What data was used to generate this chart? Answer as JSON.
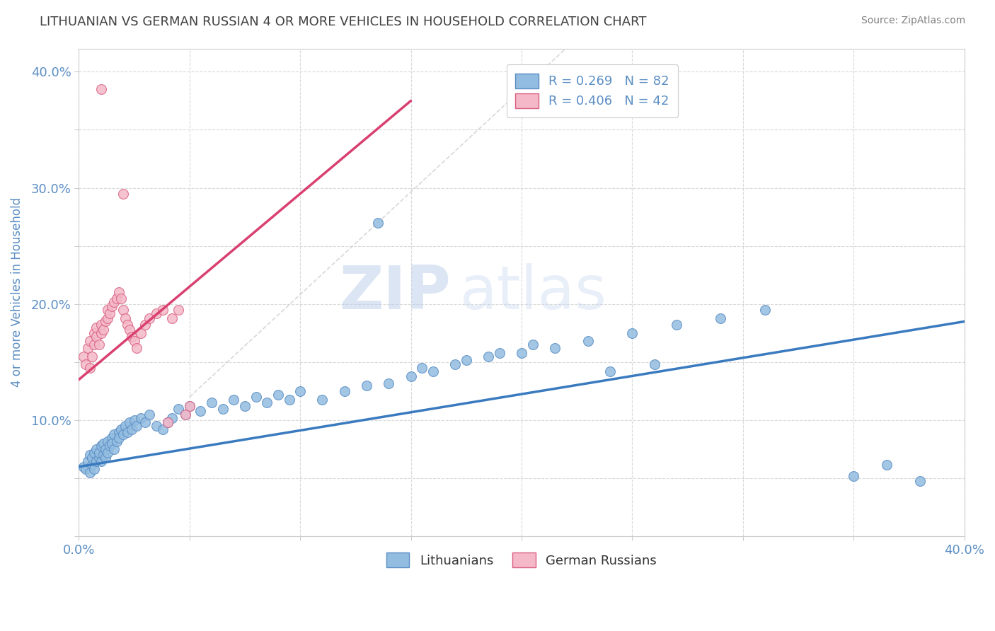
{
  "title": "LITHUANIAN VS GERMAN RUSSIAN 4 OR MORE VEHICLES IN HOUSEHOLD CORRELATION CHART",
  "source": "Source: ZipAtlas.com",
  "ylabel": "4 or more Vehicles in Household",
  "xlim": [
    0.0,
    0.4
  ],
  "ylim": [
    0.0,
    0.42
  ],
  "xtick_pos": [
    0.0,
    0.05,
    0.1,
    0.15,
    0.2,
    0.25,
    0.3,
    0.35,
    0.4
  ],
  "ytick_pos": [
    0.0,
    0.05,
    0.1,
    0.15,
    0.2,
    0.25,
    0.3,
    0.35,
    0.4
  ],
  "xtick_labels": [
    "0.0%",
    "",
    "",
    "",
    "",
    "",
    "",
    "",
    "40.0%"
  ],
  "ytick_labels": [
    "",
    "",
    "10.0%",
    "",
    "20.0%",
    "",
    "30.0%",
    "",
    "40.0%"
  ],
  "series": [
    {
      "name": "Lithuanians",
      "R": 0.269,
      "N": 82,
      "color": "#92bce0",
      "edge_color": "#5b8ec4",
      "trend_color": "#3a7abf",
      "trend_style": "solid"
    },
    {
      "name": "German Russians",
      "R": 0.406,
      "N": 42,
      "color": "#f4b8c8",
      "edge_color": "#d96080",
      "trend_color": "#d94070",
      "trend_style": "solid"
    }
  ],
  "lit_x": [
    0.002,
    0.003,
    0.004,
    0.005,
    0.005,
    0.006,
    0.006,
    0.007,
    0.007,
    0.008,
    0.008,
    0.009,
    0.009,
    0.01,
    0.01,
    0.011,
    0.011,
    0.012,
    0.012,
    0.013,
    0.013,
    0.014,
    0.015,
    0.015,
    0.016,
    0.016,
    0.017,
    0.018,
    0.018,
    0.019,
    0.02,
    0.021,
    0.022,
    0.023,
    0.024,
    0.025,
    0.026,
    0.028,
    0.03,
    0.032,
    0.035,
    0.038,
    0.04,
    0.042,
    0.045,
    0.048,
    0.05,
    0.055,
    0.06,
    0.065,
    0.07,
    0.075,
    0.08,
    0.085,
    0.09,
    0.095,
    0.1,
    0.11,
    0.12,
    0.13,
    0.14,
    0.15,
    0.16,
    0.17,
    0.185,
    0.2,
    0.215,
    0.23,
    0.25,
    0.27,
    0.29,
    0.31,
    0.135,
    0.155,
    0.175,
    0.19,
    0.205,
    0.24,
    0.26,
    0.35,
    0.365,
    0.38
  ],
  "lit_y": [
    0.06,
    0.058,
    0.065,
    0.07,
    0.055,
    0.062,
    0.068,
    0.072,
    0.058,
    0.065,
    0.075,
    0.068,
    0.072,
    0.078,
    0.065,
    0.08,
    0.07,
    0.075,
    0.068,
    0.082,
    0.072,
    0.078,
    0.085,
    0.08,
    0.088,
    0.075,
    0.082,
    0.09,
    0.085,
    0.092,
    0.088,
    0.095,
    0.09,
    0.098,
    0.092,
    0.1,
    0.095,
    0.102,
    0.098,
    0.105,
    0.095,
    0.092,
    0.098,
    0.102,
    0.11,
    0.105,
    0.112,
    0.108,
    0.115,
    0.11,
    0.118,
    0.112,
    0.12,
    0.115,
    0.122,
    0.118,
    0.125,
    0.118,
    0.125,
    0.13,
    0.132,
    0.138,
    0.142,
    0.148,
    0.155,
    0.158,
    0.162,
    0.168,
    0.175,
    0.182,
    0.188,
    0.195,
    0.27,
    0.145,
    0.152,
    0.158,
    0.165,
    0.142,
    0.148,
    0.052,
    0.062,
    0.048
  ],
  "gr_x": [
    0.002,
    0.003,
    0.004,
    0.005,
    0.005,
    0.006,
    0.007,
    0.007,
    0.008,
    0.008,
    0.009,
    0.01,
    0.01,
    0.011,
    0.012,
    0.013,
    0.013,
    0.014,
    0.015,
    0.016,
    0.017,
    0.018,
    0.019,
    0.02,
    0.021,
    0.022,
    0.023,
    0.024,
    0.025,
    0.026,
    0.028,
    0.03,
    0.032,
    0.035,
    0.038,
    0.04,
    0.042,
    0.045,
    0.048,
    0.05,
    0.01,
    0.02
  ],
  "gr_y": [
    0.155,
    0.148,
    0.162,
    0.145,
    0.168,
    0.155,
    0.175,
    0.165,
    0.18,
    0.172,
    0.165,
    0.175,
    0.182,
    0.178,
    0.185,
    0.188,
    0.195,
    0.192,
    0.198,
    0.202,
    0.205,
    0.21,
    0.205,
    0.195,
    0.188,
    0.182,
    0.178,
    0.172,
    0.168,
    0.162,
    0.175,
    0.182,
    0.188,
    0.192,
    0.195,
    0.098,
    0.188,
    0.195,
    0.105,
    0.112,
    0.385,
    0.295
  ],
  "ref_line_color": "#cccccc",
  "watermark_zip": "ZIP",
  "watermark_atlas": "atlas",
  "background_color": "#ffffff",
  "grid_color": "#d0d0d0",
  "title_color": "#404040",
  "tick_color": "#5b8ec4"
}
